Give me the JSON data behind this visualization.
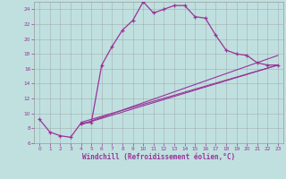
{
  "xlabel": "Windchill (Refroidissement éolien,°C)",
  "bg_color": "#c0e0e0",
  "line_color": "#993399",
  "grid_color": "#999999",
  "xlim": [
    -0.5,
    23.5
  ],
  "ylim": [
    6,
    25
  ],
  "yticks": [
    6,
    8,
    10,
    12,
    14,
    16,
    18,
    20,
    22,
    24
  ],
  "xticks": [
    0,
    1,
    2,
    3,
    4,
    5,
    6,
    7,
    8,
    9,
    10,
    11,
    12,
    13,
    14,
    15,
    16,
    17,
    18,
    19,
    20,
    21,
    22,
    23
  ],
  "curve1_x": [
    0,
    1,
    2,
    3,
    4,
    5,
    6,
    7,
    8,
    9,
    10,
    11,
    12,
    13,
    14,
    15,
    16,
    17,
    18,
    19,
    20,
    21,
    22,
    23
  ],
  "curve1_y": [
    9.2,
    7.5,
    7.0,
    6.8,
    8.7,
    8.8,
    16.5,
    19.0,
    21.2,
    22.5,
    25.0,
    23.5,
    24.0,
    24.5,
    24.5,
    23.0,
    22.8,
    20.5,
    18.5,
    18.0,
    17.8,
    16.8,
    16.5,
    16.5
  ],
  "line2_x": [
    4,
    23
  ],
  "line2_y": [
    8.8,
    16.5
  ],
  "line3_x": [
    4,
    23
  ],
  "line3_y": [
    8.5,
    16.5
  ],
  "line4_x": [
    4,
    23
  ],
  "line4_y": [
    8.5,
    17.8
  ]
}
